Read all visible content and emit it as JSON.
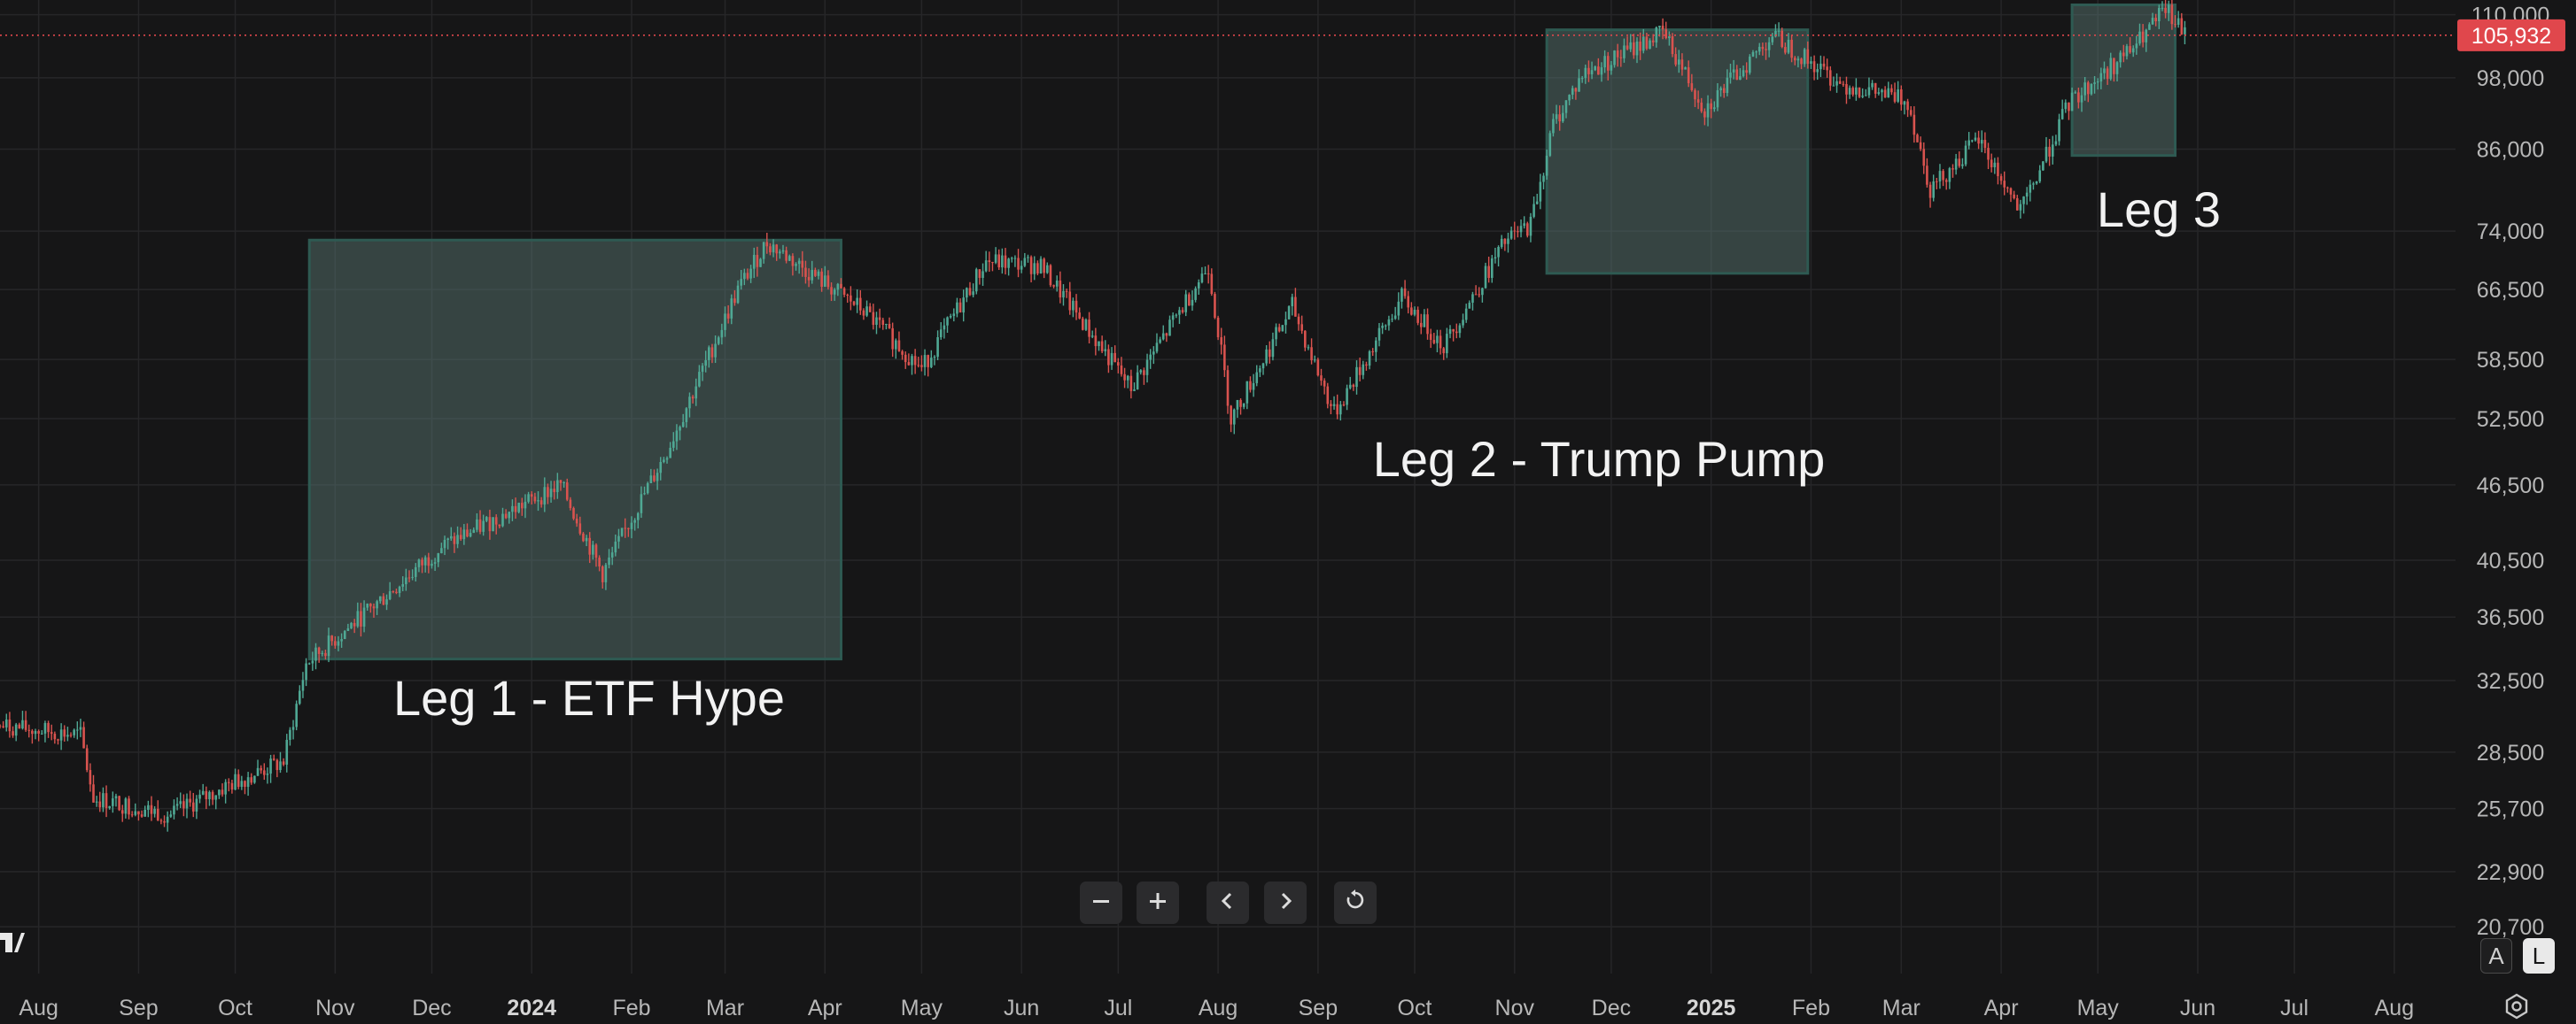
{
  "chart_data": {
    "type": "candlestick",
    "y_axis": {
      "scale": "log",
      "ticks": [
        110000,
        98000,
        86000,
        74000,
        66500,
        58500,
        52500,
        46500,
        40500,
        36500,
        32500,
        28500,
        25700,
        22900,
        20700
      ],
      "tick_labels": [
        "110,000",
        "98,000",
        "86,000",
        "74,000",
        "66,500",
        "58,500",
        "52,500",
        "46,500",
        "40,500",
        "36,500",
        "32,500",
        "28,500",
        "25,700",
        "22,900",
        "20,700"
      ],
      "ylim": [
        19000,
        113000
      ]
    },
    "x_axis": {
      "range": [
        "2023-07-20",
        "2025-08-20"
      ],
      "ticks": [
        {
          "date": "2023-08-01",
          "label": "Aug"
        },
        {
          "date": "2023-09-01",
          "label": "Sep"
        },
        {
          "date": "2023-10-01",
          "label": "Oct"
        },
        {
          "date": "2023-11-01",
          "label": "Nov"
        },
        {
          "date": "2023-12-01",
          "label": "Dec"
        },
        {
          "date": "2024-01-01",
          "label": "2024",
          "bold": true
        },
        {
          "date": "2024-02-01",
          "label": "Feb"
        },
        {
          "date": "2024-03-01",
          "label": "Mar"
        },
        {
          "date": "2024-04-01",
          "label": "Apr"
        },
        {
          "date": "2024-05-01",
          "label": "May"
        },
        {
          "date": "2024-06-01",
          "label": "Jun"
        },
        {
          "date": "2024-07-01",
          "label": "Jul"
        },
        {
          "date": "2024-08-01",
          "label": "Aug"
        },
        {
          "date": "2024-09-01",
          "label": "Sep"
        },
        {
          "date": "2024-10-01",
          "label": "Oct"
        },
        {
          "date": "2024-11-01",
          "label": "Nov"
        },
        {
          "date": "2024-12-01",
          "label": "Dec"
        },
        {
          "date": "2025-01-01",
          "label": "2025",
          "bold": true
        },
        {
          "date": "2025-02-01",
          "label": "Feb"
        },
        {
          "date": "2025-03-01",
          "label": "Mar"
        },
        {
          "date": "2025-04-01",
          "label": "Apr"
        },
        {
          "date": "2025-05-01",
          "label": "May"
        },
        {
          "date": "2025-06-01",
          "label": "Jun"
        },
        {
          "date": "2025-07-01",
          "label": "Jul"
        },
        {
          "date": "2025-08-01",
          "label": "Aug"
        }
      ]
    },
    "grid": true,
    "current_price": {
      "value": 105932,
      "label": "105,932",
      "color": "#e0474c"
    },
    "up_color": "#4fa894",
    "down_color": "#d9534f",
    "price_path": [
      [
        "2023-07-20",
        29900
      ],
      [
        "2023-08-14",
        29400
      ],
      [
        "2023-08-18",
        26200
      ],
      [
        "2023-09-11",
        25400
      ],
      [
        "2023-10-01",
        27000
      ],
      [
        "2023-10-16",
        28000
      ],
      [
        "2023-10-23",
        33500
      ],
      [
        "2023-11-09",
        36500
      ],
      [
        "2023-12-04",
        41500
      ],
      [
        "2024-01-10",
        46500
      ],
      [
        "2024-01-23",
        39500
      ],
      [
        "2024-02-12",
        49500
      ],
      [
        "2024-03-05",
        66500
      ],
      [
        "2024-03-14",
        72500
      ],
      [
        "2024-04-13",
        64000
      ],
      [
        "2024-05-01",
        57500
      ],
      [
        "2024-05-21",
        70000
      ],
      [
        "2024-06-07",
        69500
      ],
      [
        "2024-07-05",
        55500
      ],
      [
        "2024-07-29",
        69500
      ],
      [
        "2024-08-05",
        52500
      ],
      [
        "2024-08-24",
        64500
      ],
      [
        "2024-09-06",
        53000
      ],
      [
        "2024-09-27",
        65500
      ],
      [
        "2024-10-10",
        60000
      ],
      [
        "2024-10-29",
        72500
      ],
      [
        "2024-11-06",
        75000
      ],
      [
        "2024-11-13",
        90000
      ],
      [
        "2024-11-22",
        98500
      ],
      [
        "2024-12-17",
        106500
      ],
      [
        "2024-12-30",
        92500
      ],
      [
        "2025-01-20",
        106000
      ],
      [
        "2025-02-10",
        97000
      ],
      [
        "2025-03-03",
        94000
      ],
      [
        "2025-03-10",
        80000
      ],
      [
        "2025-03-25",
        87500
      ],
      [
        "2025-04-07",
        76500
      ],
      [
        "2025-04-22",
        93500
      ],
      [
        "2025-05-12",
        103500
      ],
      [
        "2025-05-22",
        111000
      ],
      [
        "2025-05-28",
        105932
      ]
    ],
    "annotations": [
      {
        "label": "Leg 1 - ETF Hype",
        "start": "2023-10-24",
        "end": "2024-04-06",
        "low": 33800,
        "high": 72800
      },
      {
        "label": "Leg 2 - Trump Pump",
        "start": "2024-11-11",
        "end": "2025-01-31",
        "low": 68500,
        "high": 107000
      },
      {
        "label": "Leg 3",
        "start": "2025-04-23",
        "end": "2025-05-25",
        "low": 85000,
        "high": 112000
      }
    ]
  },
  "toolbar": {
    "zoom_out_icon": "minus-icon",
    "zoom_in_icon": "plus-icon",
    "scroll_left_icon": "chevron-left-icon",
    "scroll_right_icon": "chevron-right-icon",
    "reset_icon": "reset-icon"
  },
  "scale_buttons": {
    "auto": "A",
    "log": "L"
  },
  "settings_icon": "gear-icon",
  "logo_icon": "tradingview-logo"
}
